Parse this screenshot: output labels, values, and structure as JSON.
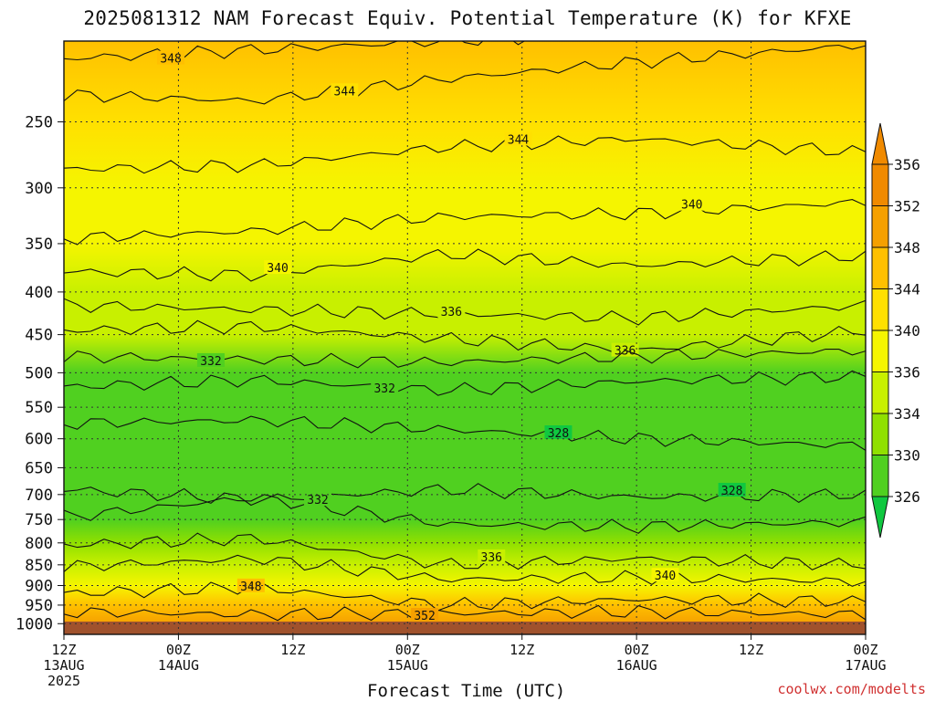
{
  "title": "2025081312 NAM Forecast Equiv. Potential Temperature (K) for KFXE",
  "credit": "coolwx.com/modelts",
  "colors": {
    "background": "#ffffff",
    "ground": "#a0522d",
    "contour": "#111111",
    "grid": "#333333"
  },
  "chart_data": {
    "type": "heatmap",
    "title": "2025081312 NAM Forecast Equiv. Potential Temperature (K) for KFXE",
    "xlabel": "Forecast Time (UTC)",
    "ylabel": "",
    "x_range_hours": [
      0,
      84
    ],
    "y_ticks": [
      250,
      300,
      350,
      400,
      450,
      500,
      550,
      600,
      650,
      700,
      750,
      800,
      850,
      900,
      950,
      1000
    ],
    "x_ticks": [
      {
        "hour": 0,
        "lines": [
          "12Z",
          "13AUG",
          "2025"
        ]
      },
      {
        "hour": 12,
        "lines": [
          "00Z",
          "14AUG"
        ]
      },
      {
        "hour": 24,
        "lines": [
          "12Z"
        ]
      },
      {
        "hour": 36,
        "lines": [
          "00Z",
          "15AUG"
        ]
      },
      {
        "hour": 48,
        "lines": [
          "12Z"
        ]
      },
      {
        "hour": 60,
        "lines": [
          "00Z",
          "16AUG"
        ]
      },
      {
        "hour": 72,
        "lines": [
          "12Z"
        ]
      },
      {
        "hour": 84,
        "lines": [
          "00Z",
          "17AUG"
        ]
      }
    ],
    "colorbar": {
      "labels": [
        356,
        352,
        348,
        344,
        340,
        336,
        334,
        330,
        326
      ],
      "colors": [
        "#f08a00",
        "#f5a000",
        "#ffc000",
        "#ffe000",
        "#f5f500",
        "#c8f000",
        "#90e000",
        "#50d020",
        "#10c840"
      ]
    },
    "grid": true,
    "profile": [
      {
        "hPa": 200,
        "theta_e": 348
      },
      {
        "hPa": 250,
        "theta_e": 345
      },
      {
        "hPa": 300,
        "theta_e": 343
      },
      {
        "hPa": 350,
        "theta_e": 340
      },
      {
        "hPa": 400,
        "theta_e": 338
      },
      {
        "hPa": 450,
        "theta_e": 336
      },
      {
        "hPa": 500,
        "theta_e": 333
      },
      {
        "hPa": 550,
        "theta_e": 332
      },
      {
        "hPa": 600,
        "theta_e": 331
      },
      {
        "hPa": 650,
        "theta_e": 330
      },
      {
        "hPa": 700,
        "theta_e": 331
      },
      {
        "hPa": 750,
        "theta_e": 332
      },
      {
        "hPa": 800,
        "theta_e": 334
      },
      {
        "hPa": 850,
        "theta_e": 336
      },
      {
        "hPa": 900,
        "theta_e": 340
      },
      {
        "hPa": 950,
        "theta_e": 348
      },
      {
        "hPa": 1000,
        "theta_e": 354
      }
    ],
    "contours": [
      {
        "label": "348",
        "hPa": [
          210,
          205,
          200,
          195,
          190
        ],
        "hour": [
          0,
          20,
          40,
          60,
          84
        ]
      },
      {
        "label": "344",
        "hPa": [
          232,
          236,
          222,
          212,
          202
        ],
        "hour": [
          0,
          20,
          40,
          60,
          84
        ]
      },
      {
        "label": "344",
        "hPa": [
          285,
          282,
          268,
          262,
          272
        ],
        "hour": [
          0,
          20,
          40,
          60,
          84
        ]
      },
      {
        "label": "340",
        "hPa": [
          345,
          338,
          325,
          322,
          312
        ],
        "hour": [
          0,
          20,
          40,
          60,
          84
        ]
      },
      {
        "label": "340",
        "hPa": [
          378,
          382,
          360,
          372,
          362
        ],
        "hour": [
          0,
          20,
          40,
          60,
          84
        ]
      },
      {
        "label": "336",
        "hPa": [
          415,
          420,
          425,
          430,
          415
        ],
        "hour": [
          0,
          20,
          40,
          60,
          84
        ]
      },
      {
        "label": "336",
        "hPa": [
          445,
          440,
          455,
          470,
          445
        ],
        "hour": [
          0,
          20,
          40,
          60,
          84
        ]
      },
      {
        "label": "332",
        "hPa": [
          478,
          482,
          486,
          478,
          470
        ],
        "hour": [
          0,
          20,
          40,
          60,
          84
        ]
      },
      {
        "label": "332",
        "hPa": [
          520,
          510,
          525,
          512,
          505
        ],
        "hour": [
          0,
          20,
          40,
          60,
          84
        ]
      },
      {
        "label": "328",
        "hPa": [
          575,
          570,
          585,
          600,
          612
        ],
        "hour": [
          0,
          20,
          40,
          60,
          84
        ]
      },
      {
        "label": "328",
        "hPa": [
          690,
          710,
          690,
          705,
          700
        ],
        "hour": [
          0,
          20,
          40,
          60,
          84
        ]
      },
      {
        "label": "332",
        "hPa": [
          745,
          705,
          760,
          765,
          755
        ],
        "hour": [
          0,
          20,
          40,
          60,
          84
        ]
      },
      {
        "label": "336",
        "hPa": [
          805,
          790,
          850,
          835,
          850
        ],
        "hour": [
          0,
          20,
          40,
          60,
          84
        ]
      },
      {
        "label": "340",
        "hPa": [
          855,
          835,
          885,
          880,
          890
        ],
        "hour": [
          0,
          20,
          40,
          60,
          84
        ]
      },
      {
        "label": "348",
        "hPa": [
          920,
          905,
          950,
          935,
          940
        ],
        "hour": [
          0,
          20,
          40,
          60,
          84
        ]
      },
      {
        "label": "352",
        "hPa": [
          968,
          975,
          972,
          968,
          975
        ],
        "hour": [
          0,
          20,
          40,
          60,
          84
        ]
      }
    ]
  }
}
